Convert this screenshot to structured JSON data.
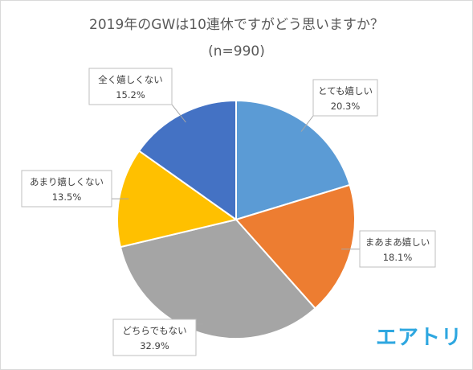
{
  "chart_data": {
    "type": "pie",
    "title": "2019年のGWは10連休ですがどう思いますか？",
    "subtitle": "(n=990)",
    "slices": [
      {
        "label": "とても嬉しい",
        "value": 20.3,
        "display": "20.3%",
        "color": "#5b9bd5"
      },
      {
        "label": "まあまあ嬉しい",
        "value": 18.1,
        "display": "18.1%",
        "color": "#ed7d31"
      },
      {
        "label": "どちらでもない",
        "value": 32.9,
        "display": "32.9%",
        "color": "#a5a5a5"
      },
      {
        "label": "あまり嬉しくない",
        "value": 13.5,
        "display": "13.5%",
        "color": "#ffc000"
      },
      {
        "label": "全く嬉しくない",
        "value": 15.2,
        "display": "15.2%",
        "color": "#4472c4"
      }
    ]
  },
  "logo": "エアトリ"
}
